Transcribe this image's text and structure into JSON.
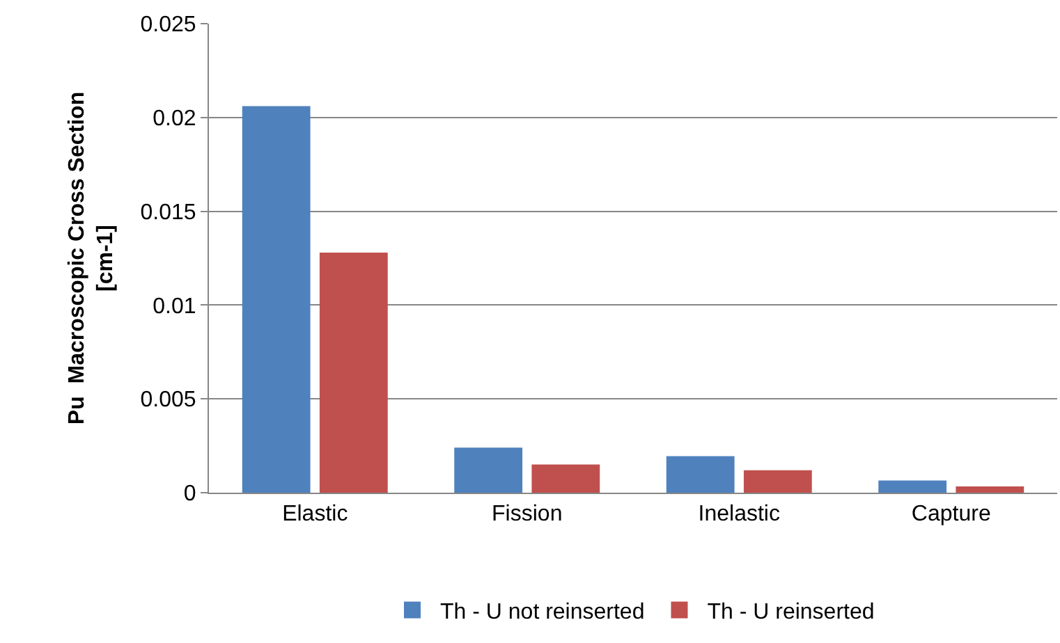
{
  "chart_data": {
    "type": "bar",
    "ylabel": "Pu  Macroscopic Cross Section [cm-1]",
    "categories": [
      "Elastic",
      "Fission",
      "Inelastic",
      "Capture"
    ],
    "series": [
      {
        "name": "Th - U not reinserted",
        "color": "#4f81bd",
        "values": [
          0.0206,
          0.0024,
          0.00195,
          0.00065
        ]
      },
      {
        "name": "Th - U reinserted",
        "color": "#c0504d",
        "values": [
          0.0128,
          0.0015,
          0.0012,
          0.00033
        ]
      }
    ],
    "ylim": [
      0,
      0.025
    ],
    "yticks": [
      0,
      0.005,
      0.01,
      0.015,
      0.02,
      0.025
    ],
    "grid": "y",
    "legend": "bottom"
  }
}
